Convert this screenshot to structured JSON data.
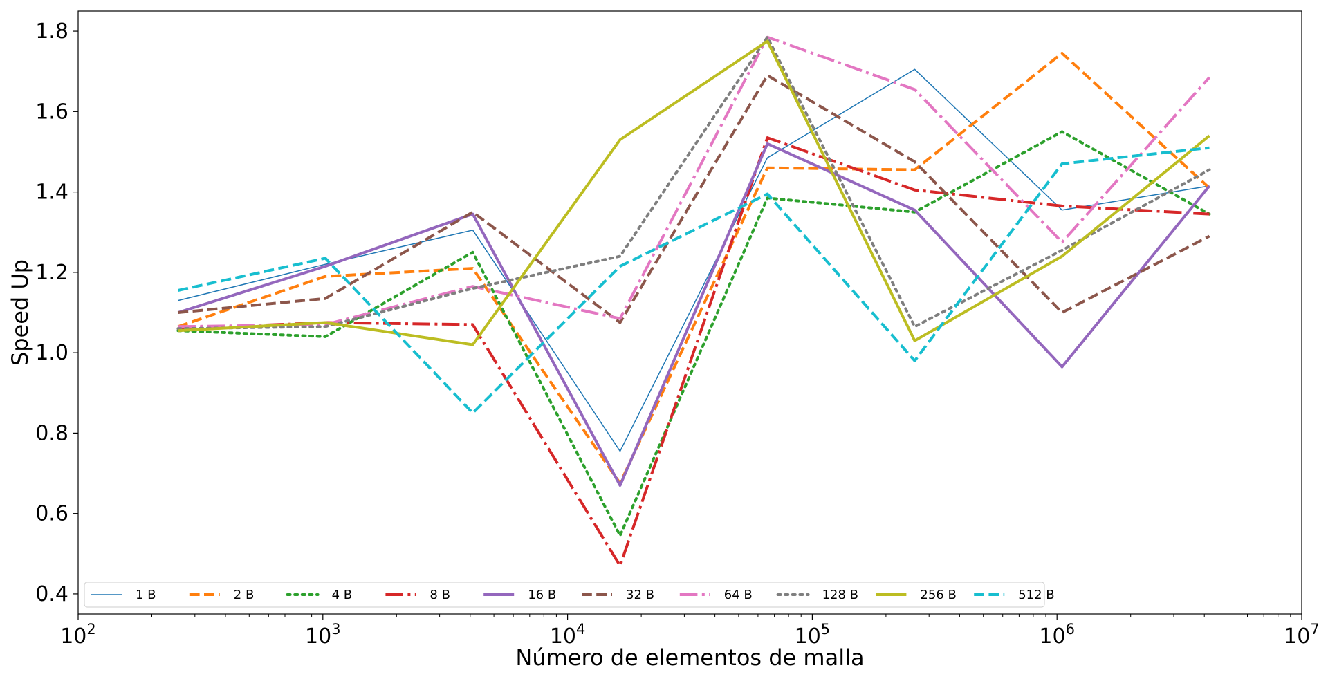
{
  "chart_data": {
    "type": "line",
    "xscale": "log",
    "xlim": [
      100,
      10000000
    ],
    "ylim": [
      0.35,
      1.85
    ],
    "xlabel": "Número de elementos de malla",
    "ylabel": "Speed Up",
    "title": "",
    "grid": false,
    "legend_position": "lower-left",
    "legend_columns": 10,
    "x": [
      256,
      1024,
      4096,
      16384,
      65536,
      262144,
      1048576,
      4194304
    ],
    "x_ticks": [
      {
        "base": "10",
        "exp": "2",
        "value": 100
      },
      {
        "base": "10",
        "exp": "3",
        "value": 1000
      },
      {
        "base": "10",
        "exp": "4",
        "value": 10000
      },
      {
        "base": "10",
        "exp": "5",
        "value": 100000
      },
      {
        "base": "10",
        "exp": "6",
        "value": 1000000
      },
      {
        "base": "10",
        "exp": "7",
        "value": 10000000
      }
    ],
    "y_ticks": [
      "0.4",
      "0.6",
      "0.8",
      "1.0",
      "1.2",
      "1.4",
      "1.6",
      "1.8"
    ],
    "series": [
      {
        "name": "1 B",
        "color": "#1f77b4",
        "style": "solid",
        "width": 1.5,
        "values": [
          1.13,
          1.22,
          1.305,
          0.755,
          1.485,
          1.705,
          1.355,
          1.415
        ]
      },
      {
        "name": "2 B",
        "color": "#ff7f0e",
        "style": "dashed",
        "width": 4,
        "values": [
          1.065,
          1.19,
          1.21,
          0.675,
          1.46,
          1.455,
          1.745,
          1.41
        ]
      },
      {
        "name": "4 B",
        "color": "#2ca02c",
        "style": "dotted",
        "width": 4,
        "values": [
          1.055,
          1.04,
          1.25,
          0.545,
          1.385,
          1.35,
          1.55,
          1.345
        ]
      },
      {
        "name": "8 B",
        "color": "#d62728",
        "style": "dashdot",
        "width": 4,
        "values": [
          1.06,
          1.075,
          1.07,
          0.47,
          1.535,
          1.405,
          1.365,
          1.345
        ]
      },
      {
        "name": "16 B",
        "color": "#9467bd",
        "style": "solid",
        "width": 4,
        "values": [
          1.1,
          1.215,
          1.345,
          0.67,
          1.52,
          1.355,
          0.965,
          1.415
        ]
      },
      {
        "name": "32 B",
        "color": "#8c564b",
        "style": "dashed",
        "width": 4,
        "values": [
          1.1,
          1.135,
          1.35,
          1.075,
          1.69,
          1.475,
          1.1,
          1.29
        ]
      },
      {
        "name": "64 B",
        "color": "#e377c2",
        "style": "dashdot",
        "width": 4,
        "values": [
          1.065,
          1.07,
          1.165,
          1.085,
          1.785,
          1.655,
          1.275,
          1.685
        ]
      },
      {
        "name": "128 B",
        "color": "#7f7f7f",
        "style": "dotted",
        "width": 4,
        "values": [
          1.06,
          1.065,
          1.16,
          1.24,
          1.785,
          1.065,
          1.255,
          1.455
        ]
      },
      {
        "name": "256 B",
        "color": "#bcbd22",
        "style": "solid",
        "width": 4,
        "values": [
          1.055,
          1.075,
          1.02,
          1.53,
          1.775,
          1.03,
          1.24,
          1.54
        ]
      },
      {
        "name": "512 B",
        "color": "#17becf",
        "style": "dashed",
        "width": 4,
        "values": [
          1.155,
          1.235,
          0.85,
          1.215,
          1.395,
          0.98,
          1.47,
          1.51
        ]
      }
    ]
  }
}
